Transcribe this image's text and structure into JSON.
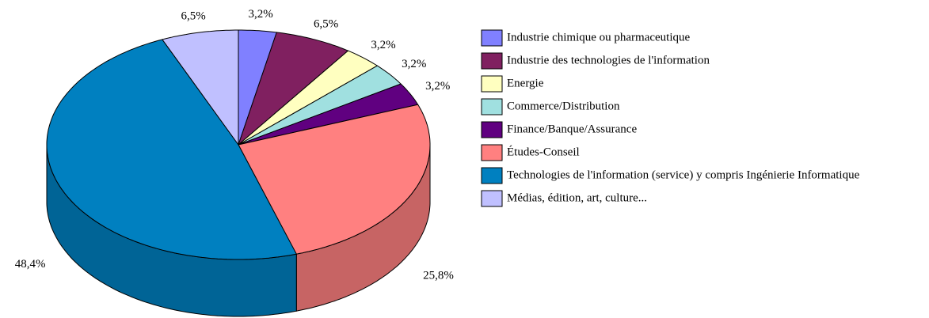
{
  "chart_data": {
    "type": "pie",
    "categories": [
      "Industrie chimique ou pharmaceutique",
      "Industrie des technologies de l'information",
      "Energie",
      "Commerce/Distribution",
      "Finance/Banque/Assurance",
      "Études-Conseil",
      "Technologies de l'information (service) y compris Ingénierie Informatique",
      "Médias, édition, art, culture..."
    ],
    "values": [
      3.2,
      6.5,
      3.2,
      3.2,
      3.2,
      25.8,
      48.4,
      6.5
    ],
    "value_labels": [
      "3,2%",
      "6,5%",
      "3,2%",
      "3,2%",
      "3,2%",
      "25,8%",
      "48,4%",
      "6,5%"
    ],
    "colors": [
      "#8080ff",
      "#802060",
      "#ffffc0",
      "#a0e0e0",
      "#600080",
      "#ff8080",
      "#0080c0",
      "#c0c0ff"
    ],
    "legend": "right"
  }
}
